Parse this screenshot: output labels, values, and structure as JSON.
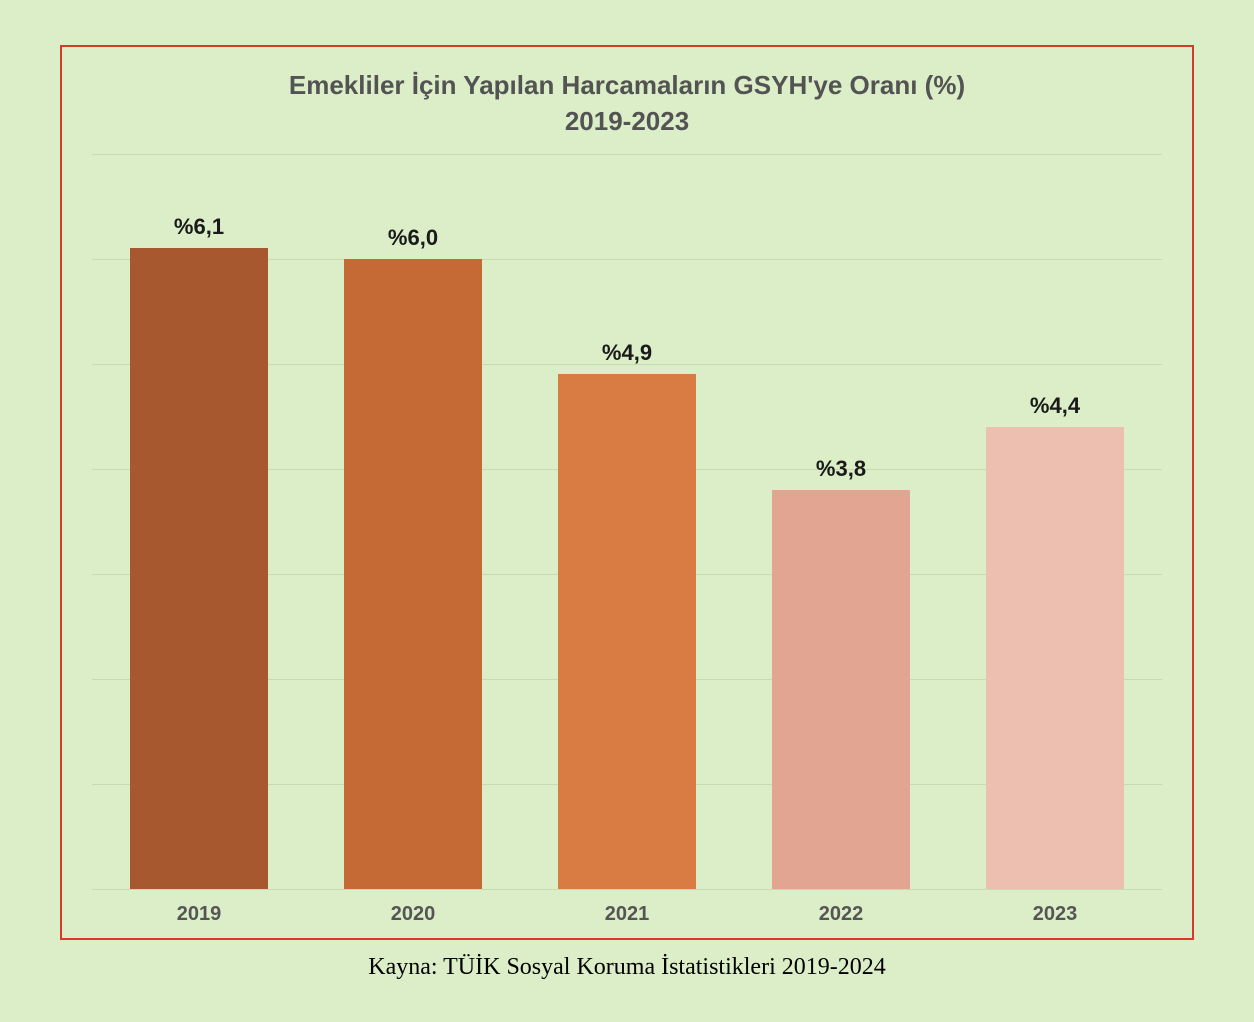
{
  "chart": {
    "type": "bar",
    "title_line1": "Emekliler İçin Yapılan Harcamaların GSYH'ye Oranı (%)",
    "title_line2": "2019-2023",
    "title_color": "#535353",
    "title_fontsize": 26,
    "background_color": "#dceec8",
    "border_color": "#d63b2a",
    "grid_color": "#c8dab1",
    "grid_lines": 8,
    "categories": [
      "2019",
      "2020",
      "2021",
      "2022",
      "2023"
    ],
    "values": [
      6.1,
      6.0,
      4.9,
      3.8,
      4.4
    ],
    "value_labels": [
      "%6,1",
      "%6,0",
      "%4,9",
      "%3,8",
      "%4,4"
    ],
    "bar_colors": [
      "#a8582f",
      "#c56a34",
      "#d87c44",
      "#e2a591",
      "#ecbfb0"
    ],
    "ylim": [
      0,
      7.0
    ],
    "bar_width_pct": 72,
    "value_label_fontsize": 22,
    "value_label_color": "#1a1a1a",
    "x_label_fontsize": 20,
    "x_label_color": "#555555"
  },
  "source": "Kayna: TÜİK Sosyal Koruma İstatistikleri 2019-2024",
  "source_fontsize": 24,
  "source_color": "#000000"
}
